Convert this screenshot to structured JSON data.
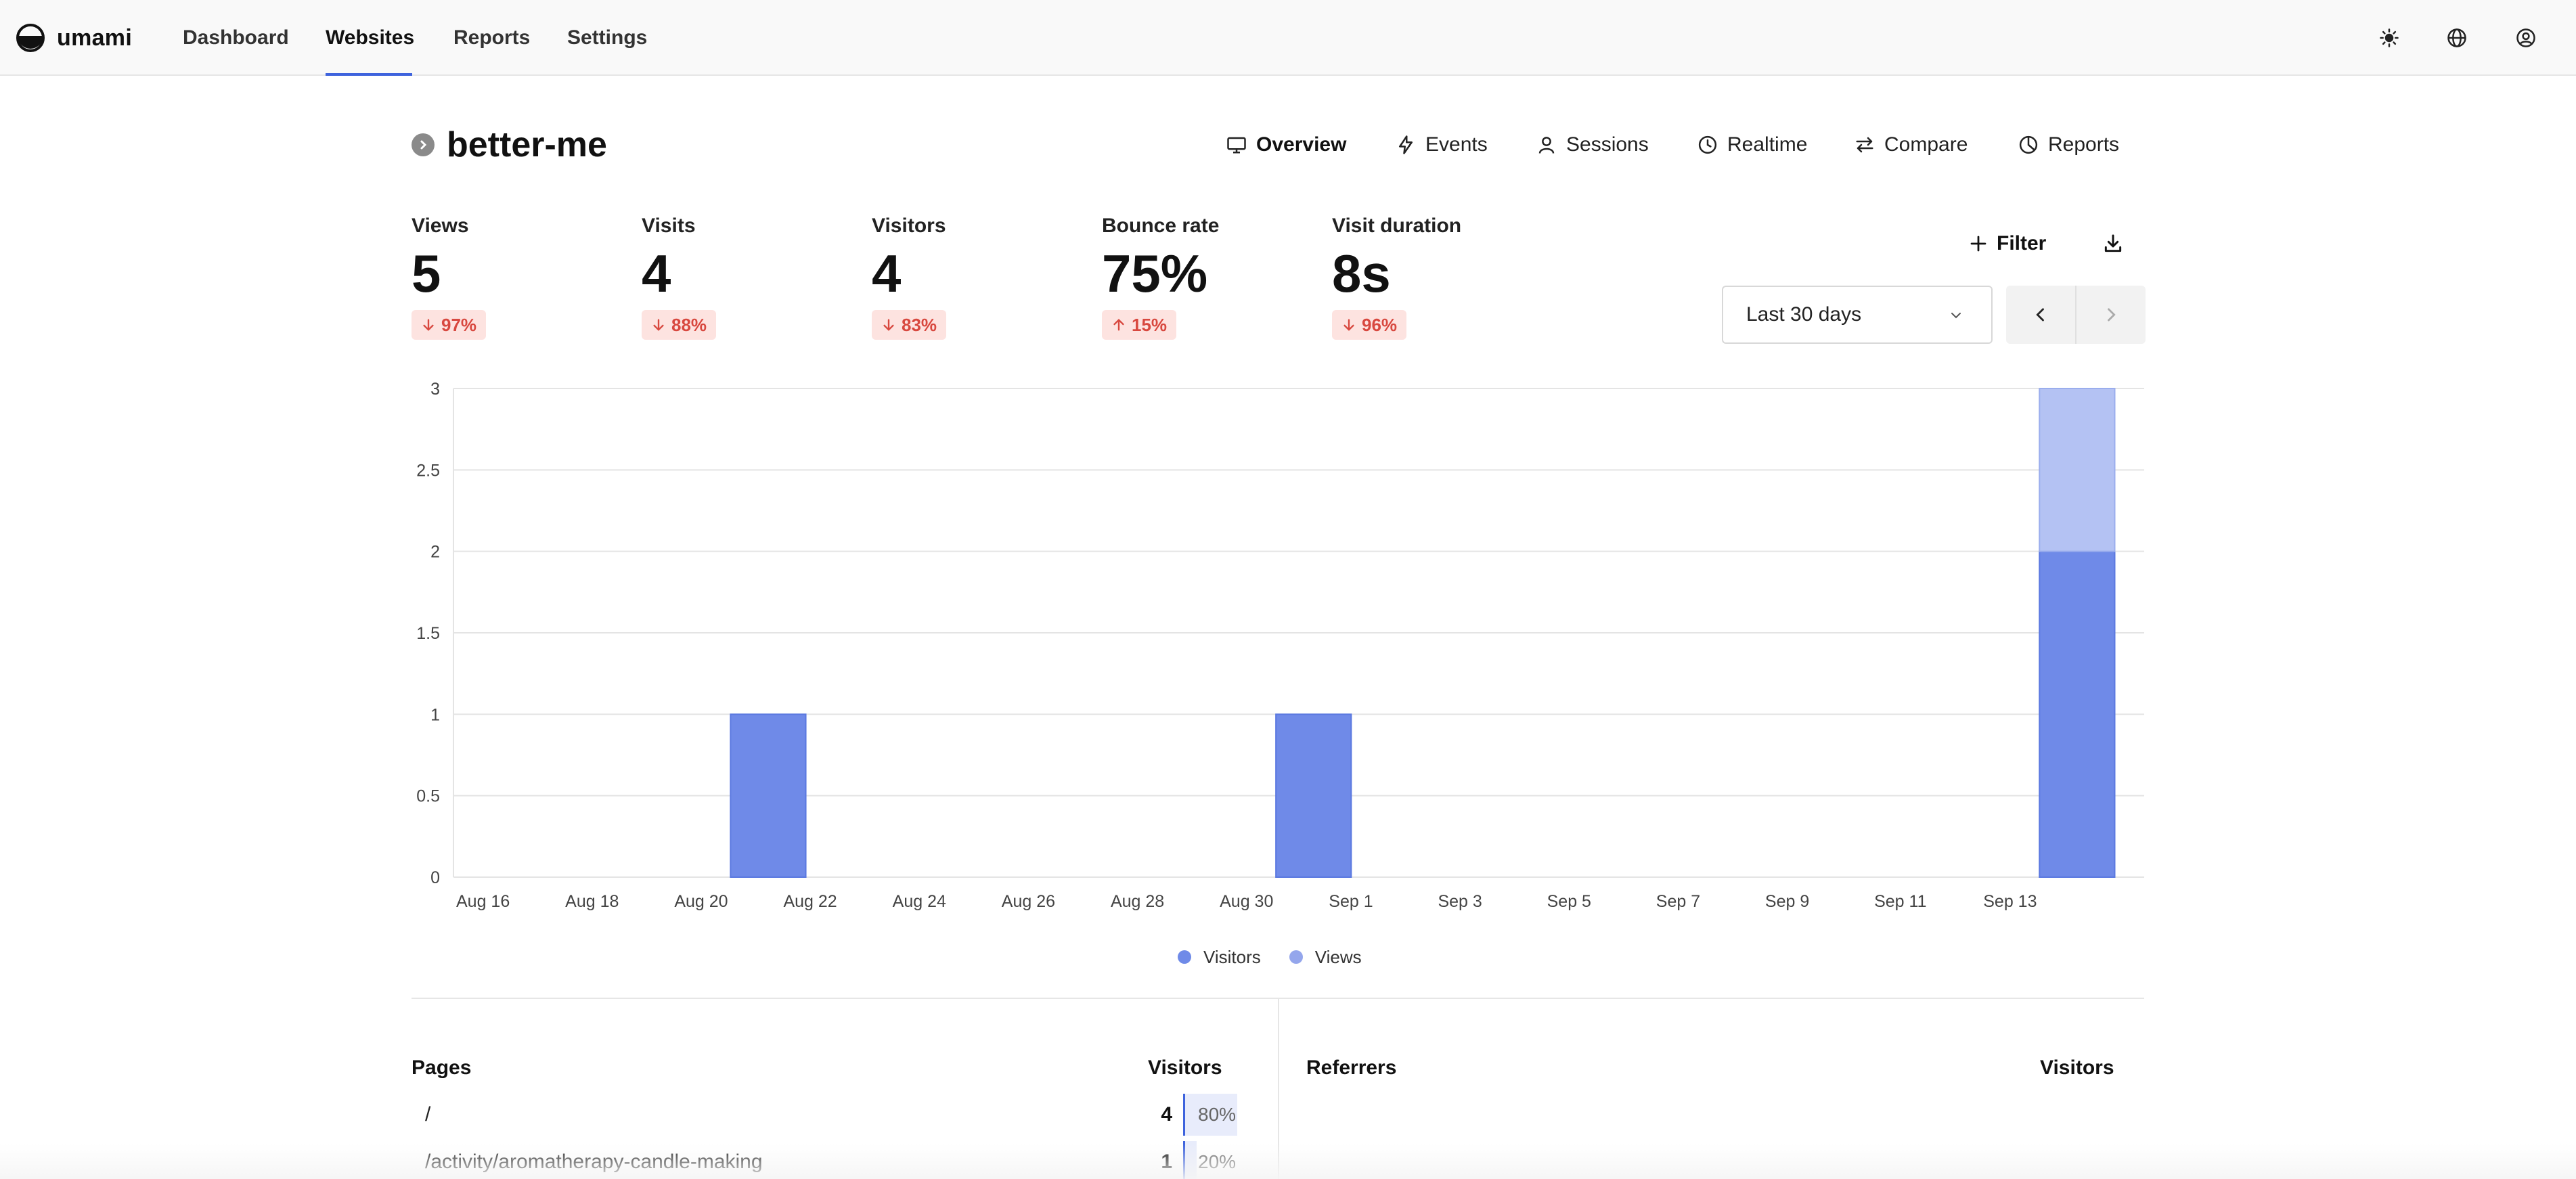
{
  "app": {
    "name": "umami"
  },
  "nav": {
    "items": [
      {
        "label": "Dashboard",
        "active": false
      },
      {
        "label": "Websites",
        "active": true
      },
      {
        "label": "Reports",
        "active": false
      },
      {
        "label": "Settings",
        "active": false
      }
    ],
    "icons": [
      "sun-icon",
      "globe-icon",
      "user-circle-icon"
    ]
  },
  "website": {
    "name": "better-me"
  },
  "tabs": [
    {
      "label": "Overview",
      "icon": "monitor-icon",
      "active": true
    },
    {
      "label": "Events",
      "icon": "lightning-icon",
      "active": false
    },
    {
      "label": "Sessions",
      "icon": "user-icon",
      "active": false
    },
    {
      "label": "Realtime",
      "icon": "clock-icon",
      "active": false
    },
    {
      "label": "Compare",
      "icon": "arrows-swap-icon",
      "active": false
    },
    {
      "label": "Reports",
      "icon": "pie-icon",
      "active": false
    }
  ],
  "metrics": [
    {
      "label": "Views",
      "value": "5",
      "change": "97%",
      "direction": "down"
    },
    {
      "label": "Visits",
      "value": "4",
      "change": "88%",
      "direction": "down"
    },
    {
      "label": "Visitors",
      "value": "4",
      "change": "83%",
      "direction": "down"
    },
    {
      "label": "Bounce rate",
      "value": "75%",
      "change": "15%",
      "direction": "up"
    },
    {
      "label": "Visit duration",
      "value": "8s",
      "change": "96%",
      "direction": "down"
    }
  ],
  "toolbar": {
    "filter_label": "Filter",
    "date_range": "Last 30 days"
  },
  "colors": {
    "accent": "#3e63dd",
    "visitors": "#6f8ae8",
    "views": "#b4c2f3",
    "negative": "#d8483f",
    "negative_bg": "#fde3e0"
  },
  "chart_data": {
    "type": "bar",
    "stacked": true,
    "x_tick_labels": [
      "Aug 16",
      "Aug 18",
      "Aug 20",
      "Aug 22",
      "Aug 24",
      "Aug 26",
      "Aug 28",
      "Aug 30",
      "Sep 1",
      "Sep 3",
      "Sep 5",
      "Sep 7",
      "Sep 9",
      "Sep 11",
      "Sep 13"
    ],
    "y_ticks": [
      "0",
      "0.5",
      "1",
      "1.5",
      "2",
      "2.5",
      "3"
    ],
    "ylim": [
      0,
      3
    ],
    "x_range": [
      "Aug 16",
      "Sep 15"
    ],
    "grid": true,
    "legend_position": "bottom",
    "series": [
      {
        "name": "Visitors",
        "points": [
          {
            "date": "Aug 21",
            "value": 1
          },
          {
            "date": "Aug 31",
            "value": 1
          },
          {
            "date": "Sep 14",
            "value": 2
          }
        ]
      },
      {
        "name": "Views",
        "points": [
          {
            "date": "Aug 21",
            "value": 0
          },
          {
            "date": "Aug 31",
            "value": 0
          },
          {
            "date": "Sep 14",
            "value": 1
          }
        ]
      }
    ]
  },
  "pages_table": {
    "title": "Pages",
    "column": "Visitors",
    "rows": [
      {
        "label": "/",
        "count": "4",
        "percent": "80%",
        "share": 0.8
      },
      {
        "label": "/activity/aromatherapy-candle-making",
        "count": "1",
        "percent": "20%",
        "share": 0.2
      }
    ]
  },
  "referrers_table": {
    "title": "Referrers",
    "column": "Visitors"
  }
}
